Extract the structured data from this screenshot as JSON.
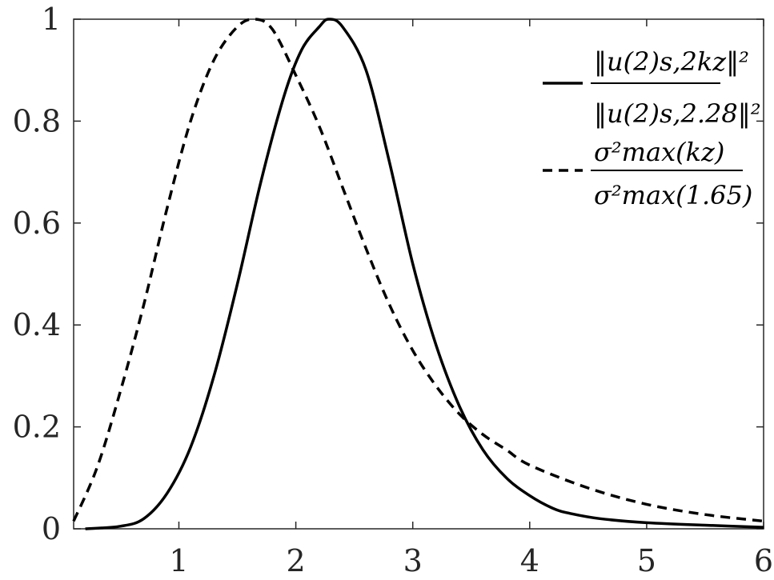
{
  "chart_data": {
    "type": "line",
    "title": "",
    "xlabel": "",
    "ylabel": "",
    "xlim": [
      0.1,
      6
    ],
    "ylim": [
      0,
      1
    ],
    "grid": false,
    "legend_placement": "top-right",
    "xticks": [
      1,
      2,
      3,
      4,
      5,
      6
    ],
    "yticks": [
      0,
      0.2,
      0.4,
      0.6,
      0.8,
      1
    ],
    "xtick_labels": [
      "1",
      "2",
      "3",
      "4",
      "5",
      "6"
    ],
    "ytick_labels": [
      "0",
      "0.2",
      "0.4",
      "0.6",
      "0.8",
      "1"
    ],
    "series": [
      {
        "legend_numerator": "‖u(2)s,2kz‖²",
        "legend_denominator": "‖u(2)s,2.28‖²",
        "style": "solid",
        "color": "#000000",
        "x": [
          0.2,
          0.5,
          0.7,
          0.9,
          1.1,
          1.3,
          1.5,
          1.7,
          1.9,
          2.05,
          2.2,
          2.28,
          2.4,
          2.6,
          2.8,
          3.0,
          3.2,
          3.4,
          3.6,
          3.8,
          4.0,
          4.2,
          4.35,
          4.6,
          5.0,
          5.5,
          6.0
        ],
        "y": [
          0.0,
          0.005,
          0.02,
          0.07,
          0.16,
          0.3,
          0.48,
          0.68,
          0.85,
          0.94,
          0.985,
          1.0,
          0.985,
          0.9,
          0.72,
          0.52,
          0.36,
          0.24,
          0.155,
          0.1,
          0.065,
          0.04,
          0.03,
          0.02,
          0.012,
          0.007,
          0.003
        ]
      },
      {
        "legend_numerator": "σ²max(kz)",
        "legend_denominator": "σ²max(1.65)",
        "style": "dashed",
        "color": "#000000",
        "x": [
          0.1,
          0.3,
          0.5,
          0.7,
          0.9,
          1.1,
          1.3,
          1.5,
          1.65,
          1.8,
          2.0,
          2.2,
          2.4,
          2.6,
          2.8,
          3.0,
          3.2,
          3.4,
          3.6,
          3.8,
          4.0,
          4.5,
          5.0,
          5.5,
          6.0
        ],
        "y": [
          0.015,
          0.12,
          0.27,
          0.44,
          0.63,
          0.8,
          0.92,
          0.985,
          1.0,
          0.98,
          0.89,
          0.79,
          0.67,
          0.55,
          0.44,
          0.35,
          0.28,
          0.225,
          0.185,
          0.155,
          0.125,
          0.08,
          0.048,
          0.028,
          0.015
        ]
      }
    ]
  }
}
